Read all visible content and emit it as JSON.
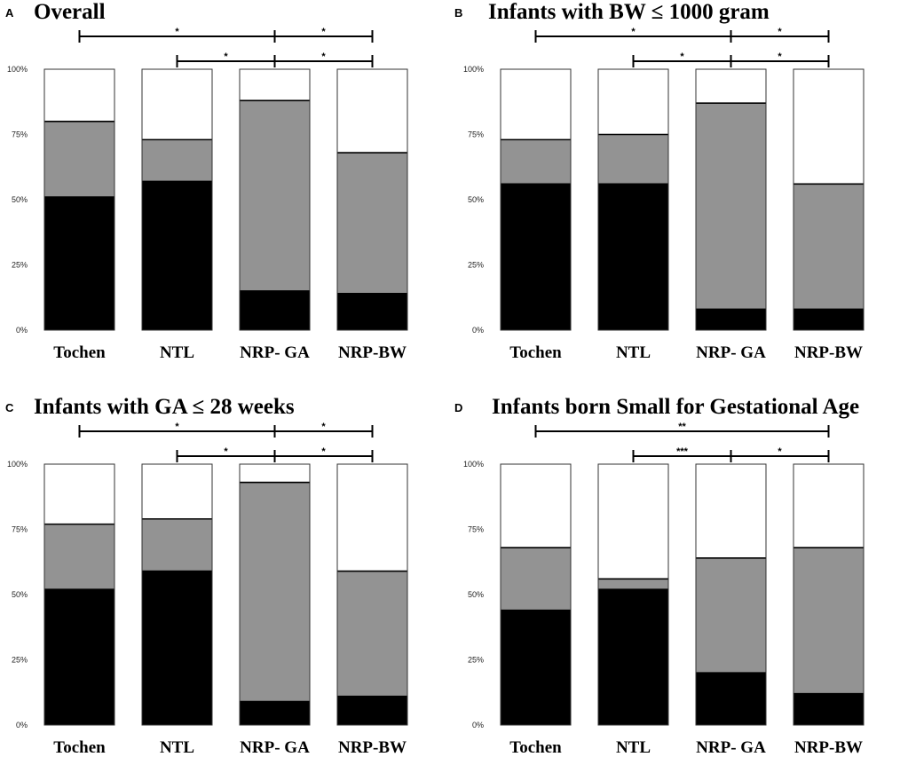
{
  "colors": {
    "black": "#000000",
    "gray": "#939393",
    "white": "#ffffff",
    "outline": "#333333"
  },
  "categories": [
    "Tochen",
    "NTL",
    "NRP- GA",
    "NRP-BW"
  ],
  "yticks": [
    "0%",
    "25%",
    "50%",
    "75%",
    "100%"
  ],
  "chart_data": [
    {
      "type": "bar",
      "stacked": true,
      "panel": "A",
      "title": "Overall",
      "categories": [
        "Tochen",
        "NTL",
        "NRP- GA",
        "NRP-BW"
      ],
      "ylim": [
        0,
        100
      ],
      "series": [
        {
          "name": "black",
          "values": [
            51,
            57,
            15,
            14
          ]
        },
        {
          "name": "gray",
          "values": [
            29,
            16,
            73,
            54
          ]
        },
        {
          "name": "white",
          "values": [
            20,
            27,
            12,
            32
          ]
        }
      ],
      "comparisons": [
        {
          "from": 0,
          "to": 2,
          "level": 0,
          "label": "*"
        },
        {
          "from": 2,
          "to": 3,
          "level": 0,
          "label": "*"
        },
        {
          "from": 1,
          "to": 2,
          "level": 1,
          "label": "*"
        },
        {
          "from": 2,
          "to": 3,
          "level": 1,
          "label": "*"
        }
      ]
    },
    {
      "type": "bar",
      "stacked": true,
      "panel": "B",
      "title": "Infants with BW ≤ 1000 gram",
      "categories": [
        "Tochen",
        "NTL",
        "NRP- GA",
        "NRP-BW"
      ],
      "ylim": [
        0,
        100
      ],
      "series": [
        {
          "name": "black",
          "values": [
            56,
            56,
            8,
            8
          ]
        },
        {
          "name": "gray",
          "values": [
            17,
            19,
            79,
            48
          ]
        },
        {
          "name": "white",
          "values": [
            27,
            25,
            13,
            44
          ]
        }
      ],
      "comparisons": [
        {
          "from": 0,
          "to": 2,
          "level": 0,
          "label": "*"
        },
        {
          "from": 2,
          "to": 3,
          "level": 0,
          "label": "*"
        },
        {
          "from": 1,
          "to": 2,
          "level": 1,
          "label": "*"
        },
        {
          "from": 2,
          "to": 3,
          "level": 1,
          "label": "*"
        }
      ]
    },
    {
      "type": "bar",
      "stacked": true,
      "panel": "C",
      "title": "Infants with GA ≤ 28 weeks",
      "categories": [
        "Tochen",
        "NTL",
        "NRP- GA",
        "NRP-BW"
      ],
      "ylim": [
        0,
        100
      ],
      "series": [
        {
          "name": "black",
          "values": [
            52,
            59,
            9,
            11
          ]
        },
        {
          "name": "gray",
          "values": [
            25,
            20,
            84,
            48
          ]
        },
        {
          "name": "white",
          "values": [
            23,
            21,
            7,
            41
          ]
        }
      ],
      "comparisons": [
        {
          "from": 0,
          "to": 2,
          "level": 0,
          "label": "*"
        },
        {
          "from": 2,
          "to": 3,
          "level": 0,
          "label": "*"
        },
        {
          "from": 1,
          "to": 2,
          "level": 1,
          "label": "*"
        },
        {
          "from": 2,
          "to": 3,
          "level": 1,
          "label": "*"
        }
      ]
    },
    {
      "type": "bar",
      "stacked": true,
      "panel": "D",
      "title": "Infants born Small for Gestational Age",
      "categories": [
        "Tochen",
        "NTL",
        "NRP- GA",
        "NRP-BW"
      ],
      "ylim": [
        0,
        100
      ],
      "series": [
        {
          "name": "black",
          "values": [
            44,
            52,
            20,
            12
          ]
        },
        {
          "name": "gray",
          "values": [
            24,
            4,
            44,
            56
          ]
        },
        {
          "name": "white",
          "values": [
            32,
            44,
            36,
            32
          ]
        }
      ],
      "comparisons": [
        {
          "from": 0,
          "to": 3,
          "level": 0,
          "label": "**"
        },
        {
          "from": 1,
          "to": 2,
          "level": 1,
          "label": "***"
        },
        {
          "from": 2,
          "to": 3,
          "level": 1,
          "label": "*"
        }
      ]
    }
  ]
}
